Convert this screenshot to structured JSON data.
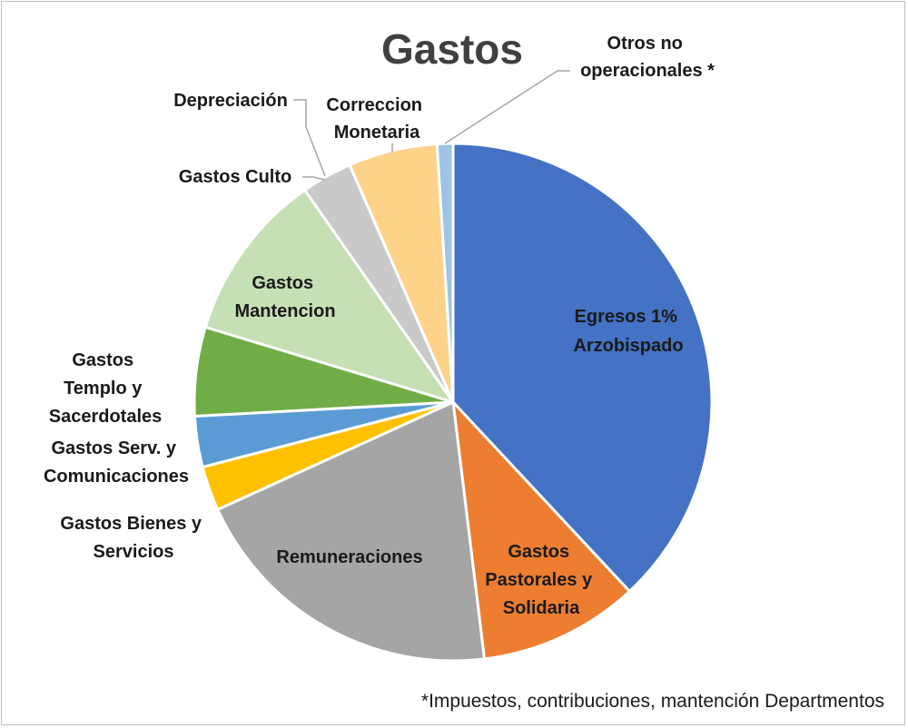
{
  "chart_data": {
    "type": "pie",
    "title": "Gastos",
    "start_angle_deg": 0,
    "direction": "clockwise",
    "slices": [
      {
        "label": "Egresos 1% Arzobispado",
        "value": 38.4,
        "color": "#4472C4"
      },
      {
        "label": "Gastos Pastorales y Solidaria",
        "value": 10.1,
        "color": "#ED7D31"
      },
      {
        "label": "Remuneraciones",
        "value": 20.3,
        "color": "#A5A5A5"
      },
      {
        "label": "Gastos Bienes y Servicios",
        "value": 2.8,
        "color": "#FFC000"
      },
      {
        "label": "Gastos Serv. y Comunicaciones",
        "value": 3.2,
        "color": "#5B9BD5"
      },
      {
        "label": "Gastos Templo y Sacerdotales",
        "value": 5.6,
        "color": "#70AD47"
      },
      {
        "label": "Gastos Mantencion",
        "value": 10.7,
        "color": "#C5E0B4"
      },
      {
        "label": "Gastos Culto",
        "value": 3.2,
        "color": "#C9C9C9"
      },
      {
        "label": "Depreciación",
        "value": 0.0,
        "color": "#B4C7E7"
      },
      {
        "label": "Correccion Monetaria",
        "value": 5.6,
        "color": "#FFD28A"
      },
      {
        "label": "Otros no operacionales *",
        "value": 1.0,
        "color": "#9DC3E6"
      }
    ]
  },
  "labels": {
    "egresos": [
      "Egresos 1%",
      "Arzobispado"
    ],
    "pastorales": [
      "Gastos",
      "Pastorales y",
      "Solidaria"
    ],
    "remuneraciones": [
      "Remuneraciones"
    ],
    "bienes": [
      "Gastos Bienes y",
      "Servicios"
    ],
    "serv": [
      "Gastos Serv. y",
      "Comunicaciones"
    ],
    "templo": [
      "Gastos",
      "Templo y",
      "Sacerdotales"
    ],
    "mantencion": [
      "Gastos",
      "Mantencion"
    ],
    "culto": [
      "Gastos Culto"
    ],
    "depreciacion": [
      "Depreciación"
    ],
    "correccion": [
      "Correccion",
      "Monetaria"
    ],
    "otros": [
      "Otros no",
      "operacionales *"
    ]
  },
  "footnote": "*Impuestos, contribuciones, mantención Departmentos"
}
